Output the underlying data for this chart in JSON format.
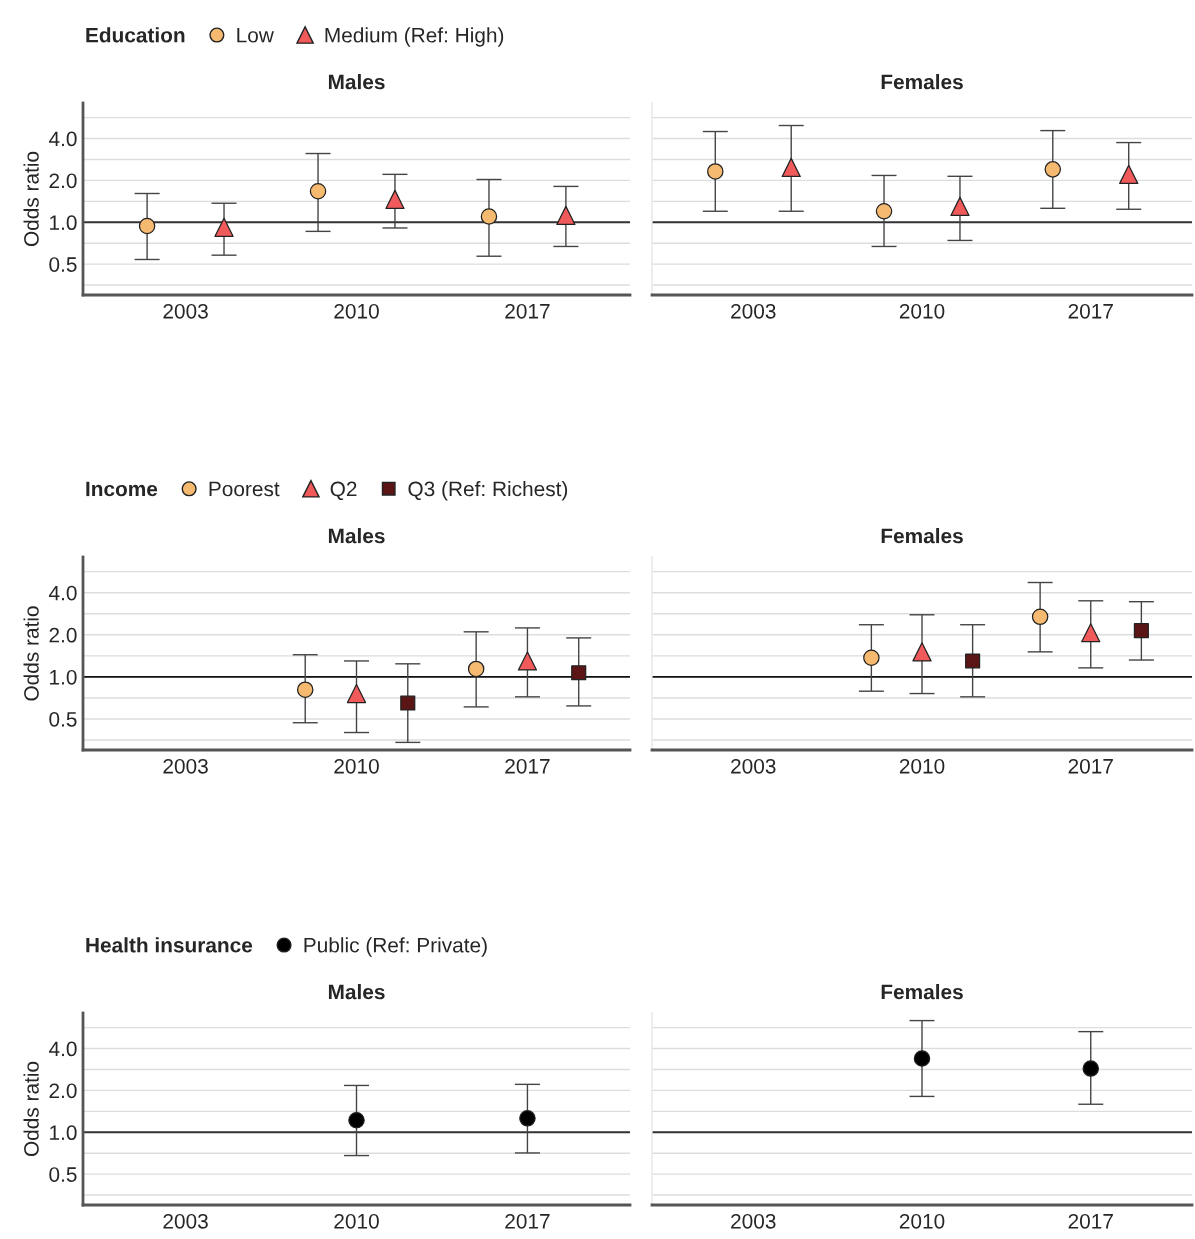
{
  "chart_data": [
    {
      "type": "scatter",
      "title": "Males",
      "ylabel": "Odds ratio",
      "legend_title": "Education",
      "legend": "top",
      "categories": [
        "2003",
        "2010",
        "2017"
      ],
      "log": "y",
      "grid": "y",
      "ylim": [
        0.3,
        7.2
      ],
      "yticks": [
        {
          "value": 0.354,
          "label": null
        },
        {
          "value": 0.5,
          "label": "0.5"
        },
        {
          "value": 0.707,
          "label": null
        },
        {
          "value": 1,
          "label": "1.0"
        },
        {
          "value": 1.414,
          "label": null
        },
        {
          "value": 2,
          "label": "2.0"
        },
        {
          "value": 2.828,
          "label": null
        },
        {
          "value": 4,
          "label": "4.0"
        },
        {
          "value": 5.657,
          "label": null
        }
      ],
      "ref_lines": [
        {
          "axis": "y",
          "value": 1,
          "color": "#333333"
        }
      ],
      "series": [
        {
          "name": "Low",
          "color": "#f5b970",
          "marker": "circle",
          "values": [
            0.94,
            1.67,
            1.1
          ],
          "errors": [
            [
              0.54,
              1.61
            ],
            [
              0.86,
              3.12
            ],
            [
              0.57,
              2.03
            ]
          ]
        },
        {
          "name": "Medium (Ref: High)",
          "color": "#f05a5a",
          "marker": "triangle",
          "values": [
            0.92,
            1.46,
            1.12
          ],
          "errors": [
            [
              0.58,
              1.37
            ],
            [
              0.91,
              2.21
            ],
            [
              0.67,
              1.81
            ]
          ]
        }
      ]
    },
    {
      "type": "scatter",
      "title": "Females",
      "categories": [
        "2003",
        "2010",
        "2017"
      ],
      "log": "y",
      "grid": "y",
      "tick_labels": "x",
      "ylim": [
        0.3,
        7.2
      ],
      "yticks": [
        {
          "value": 0.354,
          "label": null
        },
        {
          "value": 0.5,
          "label": null
        },
        {
          "value": 0.707,
          "label": null
        },
        {
          "value": 1,
          "label": null
        },
        {
          "value": 1.414,
          "label": null
        },
        {
          "value": 2,
          "label": null
        },
        {
          "value": 2.828,
          "label": null
        },
        {
          "value": 4,
          "label": null
        },
        {
          "value": 5.657,
          "label": null
        }
      ],
      "ref_lines": [
        {
          "axis": "y",
          "value": 1,
          "color": "#333333"
        }
      ],
      "series": [
        {
          "color": "#f5b970",
          "marker": "circle",
          "values": [
            2.32,
            1.2,
            2.4
          ],
          "errors": [
            [
              1.2,
              4.49
            ],
            [
              0.67,
              2.17
            ],
            [
              1.26,
              4.56
            ]
          ]
        },
        {
          "color": "#f05a5a",
          "marker": "triangle",
          "values": [
            2.48,
            1.3,
            2.21
          ],
          "errors": [
            [
              1.2,
              4.96
            ],
            [
              0.74,
              2.14
            ],
            [
              1.24,
              3.74
            ]
          ]
        }
      ]
    },
    {
      "type": "scatter",
      "title": "Males",
      "ylabel": "Odds ratio",
      "legend_title": "Income",
      "legend": "top",
      "categories": [
        "2003",
        "2010",
        "2017"
      ],
      "log": "y",
      "grid": "y",
      "ylim": [
        0.3,
        7.2
      ],
      "yticks": [
        {
          "value": 0.354,
          "label": null
        },
        {
          "value": 0.5,
          "label": "0.5"
        },
        {
          "value": 0.707,
          "label": null
        },
        {
          "value": 1,
          "label": "1.0"
        },
        {
          "value": 1.414,
          "label": null
        },
        {
          "value": 2,
          "label": "2.0"
        },
        {
          "value": 2.828,
          "label": null
        },
        {
          "value": 4,
          "label": "4.0"
        },
        {
          "value": 5.657,
          "label": null
        }
      ],
      "ref_lines": [
        {
          "axis": "y",
          "value": 1,
          "color": "#111111"
        }
      ],
      "series": [
        {
          "name": "Poorest",
          "color": "#f5b970",
          "marker": "circle",
          "values": [
            null,
            0.81,
            1.14
          ],
          "errors": [
            null,
            [
              0.47,
              1.44
            ],
            [
              0.61,
              2.1
            ]
          ]
        },
        {
          "name": "Q2",
          "color": "#f05a5a",
          "marker": "triangle",
          "values": [
            null,
            0.76,
            1.3
          ],
          "errors": [
            null,
            [
              0.4,
              1.3
            ],
            [
              0.72,
              2.24
            ]
          ]
        },
        {
          "name": "Q3 (Ref: Richest)",
          "color": "#5c1515",
          "marker": "square",
          "values": [
            null,
            0.65,
            1.07
          ],
          "errors": [
            null,
            [
              0.34,
              1.24
            ],
            [
              0.62,
              1.9
            ]
          ]
        }
      ]
    },
    {
      "type": "scatter",
      "title": "Females",
      "categories": [
        "2003",
        "2010",
        "2017"
      ],
      "log": "y",
      "grid": "y",
      "tick_labels": "x",
      "ylim": [
        0.3,
        7.2
      ],
      "yticks": [
        {
          "value": 0.354,
          "label": null
        },
        {
          "value": 0.5,
          "label": null
        },
        {
          "value": 0.707,
          "label": null
        },
        {
          "value": 1,
          "label": null
        },
        {
          "value": 1.414,
          "label": null
        },
        {
          "value": 2,
          "label": null
        },
        {
          "value": 2.828,
          "label": null
        },
        {
          "value": 4,
          "label": null
        },
        {
          "value": 5.657,
          "label": null
        }
      ],
      "ref_lines": [
        {
          "axis": "y",
          "value": 1,
          "color": "#111111"
        }
      ],
      "series": [
        {
          "color": "#f5b970",
          "marker": "circle",
          "values": [
            null,
            1.37,
            2.69
          ],
          "errors": [
            null,
            [
              0.79,
              2.36
            ],
            [
              1.51,
              4.73
            ]
          ]
        },
        {
          "color": "#f05a5a",
          "marker": "triangle",
          "values": [
            null,
            1.51,
            2.07
          ],
          "errors": [
            null,
            [
              0.76,
              2.78
            ],
            [
              1.16,
              3.5
            ]
          ]
        },
        {
          "color": "#5c1515",
          "marker": "square",
          "values": [
            null,
            1.3,
            2.14
          ],
          "errors": [
            null,
            [
              0.72,
              2.36
            ],
            [
              1.32,
              3.45
            ]
          ]
        }
      ]
    },
    {
      "type": "scatter",
      "title": "Males",
      "ylabel": "Odds ratio",
      "legend_title": "Health insurance",
      "legend": "top",
      "categories": [
        "2003",
        "2010",
        "2017"
      ],
      "log": "y",
      "grid": "y",
      "ylim": [
        0.3,
        7.2
      ],
      "yticks": [
        {
          "value": 0.354,
          "label": null
        },
        {
          "value": 0.5,
          "label": "0.5"
        },
        {
          "value": 0.707,
          "label": null
        },
        {
          "value": 1,
          "label": "1.0"
        },
        {
          "value": 1.414,
          "label": null
        },
        {
          "value": 2,
          "label": "2.0"
        },
        {
          "value": 2.828,
          "label": null
        },
        {
          "value": 4,
          "label": "4.0"
        },
        {
          "value": 5.657,
          "label": null
        }
      ],
      "ref_lines": [
        {
          "axis": "y",
          "value": 1,
          "color": "#333333"
        }
      ],
      "series": [
        {
          "name": "Public (Ref: Private)",
          "color": "#000000",
          "marker": "circle",
          "values": [
            null,
            1.22,
            1.26
          ],
          "errors": [
            null,
            [
              0.68,
              2.17
            ],
            [
              0.71,
              2.21
            ]
          ]
        }
      ]
    },
    {
      "type": "scatter",
      "title": "Females",
      "categories": [
        "2003",
        "2010",
        "2017"
      ],
      "log": "y",
      "grid": "y",
      "tick_labels": "x",
      "ylim": [
        0.3,
        7.2
      ],
      "yticks": [
        {
          "value": 0.354,
          "label": null
        },
        {
          "value": 0.5,
          "label": null
        },
        {
          "value": 0.707,
          "label": null
        },
        {
          "value": 1,
          "label": null
        },
        {
          "value": 1.414,
          "label": null
        },
        {
          "value": 2,
          "label": null
        },
        {
          "value": 2.828,
          "label": null
        },
        {
          "value": 4,
          "label": null
        },
        {
          "value": 5.657,
          "label": null
        }
      ],
      "ref_lines": [
        {
          "axis": "y",
          "value": 1,
          "color": "#333333"
        }
      ],
      "series": [
        {
          "color": "#000000",
          "marker": "circle",
          "values": [
            null,
            3.39,
            2.87
          ],
          "errors": [
            null,
            [
              1.81,
              6.35
            ],
            [
              1.59,
              5.29
            ]
          ]
        }
      ]
    }
  ]
}
